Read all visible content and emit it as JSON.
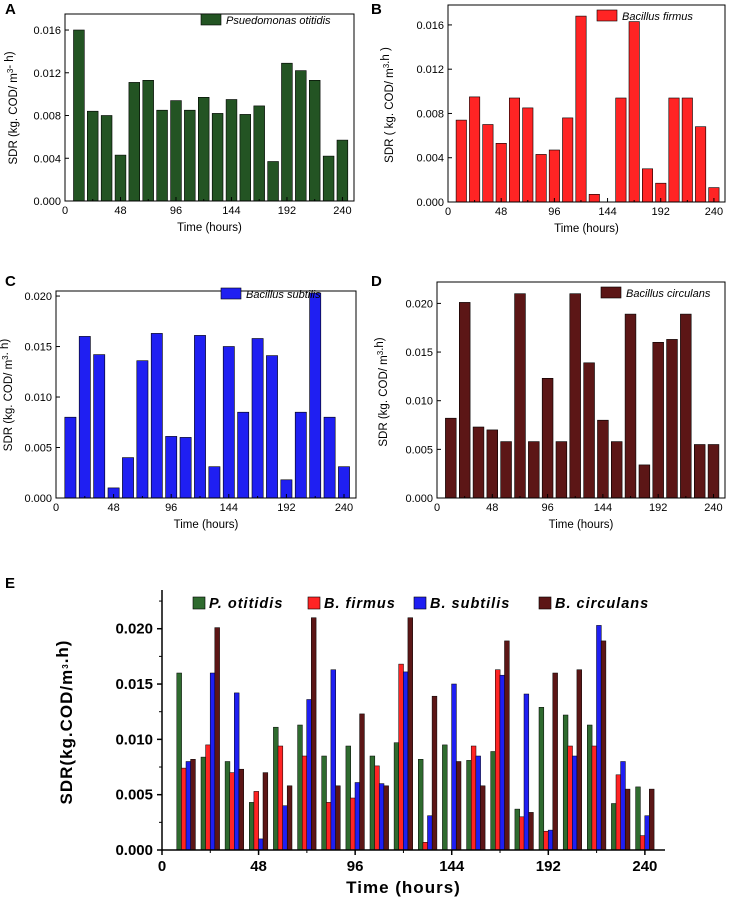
{
  "x_hours": [
    12,
    24,
    36,
    48,
    60,
    72,
    84,
    96,
    108,
    120,
    132,
    144,
    156,
    168,
    180,
    192,
    204,
    216,
    228,
    240
  ],
  "chart_data": [
    {
      "type": "bar",
      "panel": "A",
      "legend": "Psuedomonas otitidis",
      "color": "#235423",
      "xlabel": "Time (hours)",
      "ylabel": "SDR (kg. COD/ m³- h)",
      "xlim": [
        0,
        250
      ],
      "ylim": [
        0,
        0.0175
      ],
      "xticks": [
        "0",
        "48",
        "96",
        "144",
        "192",
        "240"
      ],
      "yticks": [
        "0.000",
        "0.004",
        "0.008",
        "0.012",
        "0.016"
      ],
      "values": [
        0.016,
        0.0084,
        0.008,
        0.0043,
        0.0111,
        0.0113,
        0.0085,
        0.0094,
        0.0085,
        0.0097,
        0.0082,
        0.0095,
        0.0081,
        0.0089,
        0.0037,
        0.0129,
        0.0122,
        0.0113,
        0.0042,
        0.0057
      ]
    },
    {
      "type": "bar",
      "panel": "B",
      "legend": "Bacillus firmus",
      "color": "#ff2424",
      "xlabel": "Time (hours)",
      "ylabel": "SDR ( kg. COD/ m³.h )",
      "xlim": [
        0,
        250
      ],
      "ylim": [
        0,
        0.0178
      ],
      "xticks": [
        "0",
        "48",
        "96",
        "144",
        "192",
        "240"
      ],
      "yticks": [
        "0.000",
        "0.004",
        "0.008",
        "0.012",
        "0.016"
      ],
      "values": [
        0.0074,
        0.0095,
        0.007,
        0.0053,
        0.0094,
        0.0085,
        0.0043,
        0.0047,
        0.0076,
        0.0168,
        0.0007,
        0.0,
        0.0094,
        0.0163,
        0.003,
        0.0017,
        0.0094,
        0.0094,
        0.0068,
        0.0013
      ]
    },
    {
      "type": "bar",
      "panel": "C",
      "legend": "Bacillus subtilis",
      "color": "#1f1ff2",
      "xlabel": "Time (hours)",
      "ylabel": "SDR (kg. COD/ m³. h)",
      "xlim": [
        0,
        250
      ],
      "ylim": [
        0,
        0.0205
      ],
      "xticks": [
        "0",
        "48",
        "96",
        "144",
        "192",
        "240"
      ],
      "yticks": [
        "0.000",
        "0.005",
        "0.010",
        "0.015",
        "0.020"
      ],
      "values": [
        0.008,
        0.016,
        0.0142,
        0.001,
        0.004,
        0.0136,
        0.0163,
        0.0061,
        0.006,
        0.0161,
        0.0031,
        0.015,
        0.0085,
        0.0158,
        0.0141,
        0.0018,
        0.0085,
        0.0203,
        0.008,
        0.0031
      ]
    },
    {
      "type": "bar",
      "panel": "D",
      "legend": "Bacillus circulans",
      "color": "#5c1616",
      "xlabel": "Time (hours)",
      "ylabel": "SDR (kg. COD/ m³.h)",
      "xlim": [
        0,
        250
      ],
      "ylim": [
        0,
        0.0222
      ],
      "xticks": [
        "0",
        "48",
        "96",
        "144",
        "192",
        "240"
      ],
      "yticks": [
        "0.000",
        "0.005",
        "0.010",
        "0.015",
        "0.020"
      ],
      "values": [
        0.0082,
        0.0201,
        0.0073,
        0.007,
        0.0058,
        0.021,
        0.0058,
        0.0123,
        0.0058,
        0.021,
        0.0139,
        0.008,
        0.0058,
        0.0189,
        0.0034,
        0.016,
        0.0163,
        0.0189,
        0.0055,
        0.0055
      ]
    },
    {
      "type": "bar",
      "panel": "E",
      "grouped": true,
      "xlabel": "Time (hours)",
      "ylabel": "SDR(kg.COD/m³.h)",
      "xlim": [
        0,
        250
      ],
      "ylim": [
        0,
        0.0235
      ],
      "xticks": [
        "0",
        "48",
        "96",
        "144",
        "192",
        "240"
      ],
      "yticks": [
        "0.000",
        "0.005",
        "0.010",
        "0.015",
        "0.020"
      ],
      "series": [
        {
          "name": "P. otitidis",
          "color": "#2f6b2f",
          "source": 0
        },
        {
          "name": "B. firmus",
          "color": "#ff2424",
          "source": 1
        },
        {
          "name": "B. subtilis",
          "color": "#1f1ff2",
          "source": 2
        },
        {
          "name": "B. circulans",
          "color": "#5c1616",
          "source": 3
        }
      ]
    }
  ]
}
